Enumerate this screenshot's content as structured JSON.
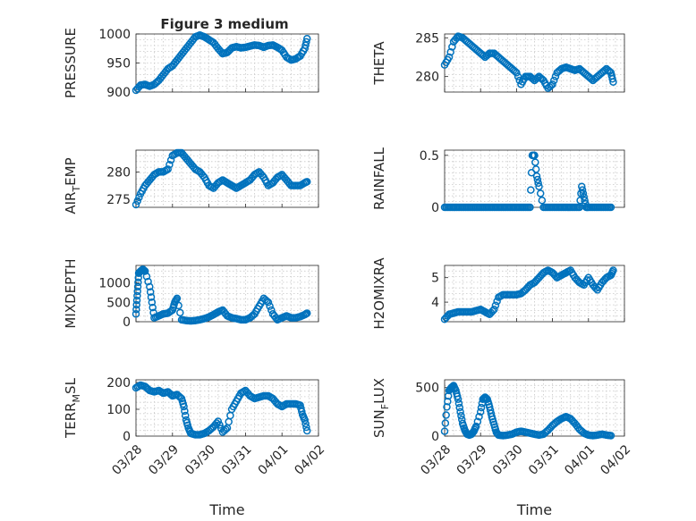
{
  "figure_title": "Figure 3 medium",
  "colors": {
    "marker": "#0072BD",
    "axes": "#262626",
    "grid": "#c8c8c8"
  },
  "chart_data": [
    {
      "type": "scatter",
      "id": "pressure",
      "ylabel": "PRESSURE",
      "xlabel": "",
      "ylim": [
        900,
        1000
      ],
      "yticks": [
        900,
        950,
        1000
      ],
      "xlim": [
        0,
        4
      ],
      "xtick_labels": [],
      "title": "Figure 3 medium",
      "series": [
        {
          "x": [
            0.0,
            0.1,
            0.2,
            0.3,
            0.4,
            0.5,
            0.6,
            0.7,
            0.8,
            0.9,
            1.0,
            1.1,
            1.2,
            1.3,
            1.4,
            1.5,
            1.6,
            1.7,
            1.8,
            1.9,
            2.0,
            2.1,
            2.2,
            2.3,
            2.4,
            2.5,
            2.6,
            2.7,
            2.8,
            2.9,
            3.0,
            3.1,
            3.2,
            3.3,
            3.4,
            3.5,
            3.6,
            3.7,
            3.75
          ],
          "y": [
            903,
            912,
            913,
            910,
            913,
            920,
            930,
            940,
            945,
            955,
            965,
            975,
            985,
            995,
            998,
            995,
            990,
            985,
            975,
            966,
            968,
            976,
            978,
            976,
            977,
            979,
            981,
            980,
            977,
            980,
            981,
            977,
            972,
            960,
            955,
            957,
            962,
            975,
            992
          ]
        }
      ]
    },
    {
      "type": "scatter",
      "id": "theta",
      "ylabel": "THETA",
      "xlabel": "",
      "ylim": [
        278,
        285.5
      ],
      "yticks": [
        280,
        285
      ],
      "xlim": [
        0,
        4
      ],
      "xtick_labels": [],
      "series": [
        {
          "x": [
            0.0,
            0.1,
            0.2,
            0.3,
            0.4,
            0.5,
            0.6,
            0.7,
            0.8,
            0.9,
            1.0,
            1.1,
            1.2,
            1.3,
            1.4,
            1.5,
            1.6,
            1.7,
            1.8,
            1.9,
            2.0,
            2.1,
            2.2,
            2.3,
            2.4,
            2.5,
            2.6,
            2.7,
            2.8,
            2.9,
            3.0,
            3.1,
            3.2,
            3.3,
            3.4,
            3.5,
            3.6,
            3.7,
            3.75
          ],
          "y": [
            281.5,
            282.5,
            284.5,
            285.2,
            285,
            284.5,
            284,
            283.5,
            283,
            282.5,
            283,
            283,
            282.5,
            282,
            281.5,
            281,
            280.5,
            279,
            280,
            280,
            279.5,
            280,
            279.5,
            278.5,
            279,
            280.5,
            281,
            281.2,
            281,
            280.8,
            281,
            280.5,
            280,
            279.5,
            280,
            280.5,
            281,
            280.5,
            279.3
          ]
        }
      ]
    },
    {
      "type": "scatter",
      "id": "air_temp",
      "ylabel": "AIR_TEMP",
      "xlabel": "",
      "ylim": [
        273.5,
        284
      ],
      "yticks": [
        275,
        280
      ],
      "xlim": [
        0,
        4
      ],
      "xtick_labels": [],
      "series": [
        {
          "x": [
            0.0,
            0.1,
            0.2,
            0.3,
            0.4,
            0.5,
            0.6,
            0.7,
            0.8,
            0.9,
            1.0,
            1.1,
            1.2,
            1.3,
            1.4,
            1.5,
            1.6,
            1.7,
            1.8,
            1.9,
            2.0,
            2.1,
            2.2,
            2.3,
            2.4,
            2.5,
            2.6,
            2.7,
            2.8,
            2.9,
            3.0,
            3.1,
            3.2,
            3.3,
            3.4,
            3.5,
            3.6,
            3.7,
            3.75
          ],
          "y": [
            274,
            276,
            277.5,
            278.5,
            279.5,
            280,
            280,
            280.5,
            283,
            283.5,
            283.5,
            282.5,
            281.5,
            280.5,
            280,
            279,
            277.5,
            277,
            278,
            278.5,
            278,
            277.5,
            277,
            277.5,
            278,
            278.5,
            279.5,
            280,
            279,
            277.5,
            278,
            279,
            279.5,
            278.5,
            277.5,
            277.5,
            277.5,
            278,
            278.2
          ]
        }
      ]
    },
    {
      "type": "scatter",
      "id": "rainfall",
      "ylabel": "RAINFALL",
      "xlabel": "",
      "ylim": [
        0,
        0.55
      ],
      "yticks": [
        0,
        0.5
      ],
      "xlim": [
        0,
        4
      ],
      "xtick_labels": [],
      "series": [
        {
          "x": [
            0.0,
            0.1,
            0.2,
            0.3,
            0.4,
            0.5,
            0.6,
            0.7,
            0.8,
            0.9,
            1.0,
            1.1,
            1.2,
            1.3,
            1.4,
            1.5,
            1.6,
            1.7,
            1.8,
            1.9,
            1.95,
            2.0,
            2.05,
            2.1,
            2.2,
            2.3,
            2.4,
            2.5,
            2.6,
            2.7,
            2.8,
            2.9,
            3.0,
            3.05,
            3.1,
            3.15,
            3.2,
            3.3,
            3.4,
            3.5,
            3.6,
            3.7
          ],
          "y": [
            0,
            0,
            0,
            0,
            0,
            0,
            0,
            0,
            0,
            0,
            0,
            0,
            0,
            0,
            0,
            0,
            0,
            0,
            0,
            0,
            0.5,
            0.5,
            0.3,
            0.2,
            0,
            0,
            0,
            0,
            0,
            0,
            0,
            0,
            0,
            0.2,
            0.1,
            0,
            0,
            0,
            0,
            0,
            0,
            0
          ]
        }
      ]
    },
    {
      "type": "scatter",
      "id": "mixdepth",
      "ylabel": "MIXDEPTH",
      "xlabel": "",
      "ylim": [
        0,
        1450
      ],
      "yticks": [
        0,
        500,
        1000
      ],
      "xlim": [
        0,
        4
      ],
      "xtick_labels": [],
      "series": [
        {
          "x": [
            0.0,
            0.02,
            0.04,
            0.06,
            0.1,
            0.15,
            0.2,
            0.3,
            0.35,
            0.4,
            0.5,
            0.6,
            0.7,
            0.8,
            0.85,
            0.9,
            1.0,
            1.1,
            1.2,
            1.3,
            1.4,
            1.5,
            1.6,
            1.7,
            1.8,
            1.9,
            2.0,
            2.1,
            2.2,
            2.3,
            2.4,
            2.5,
            2.6,
            2.7,
            2.8,
            2.9,
            3.0,
            3.1,
            3.2,
            3.3,
            3.4,
            3.5,
            3.6,
            3.7,
            3.75
          ],
          "y": [
            200,
            550,
            900,
            1250,
            1300,
            1350,
            1300,
            900,
            500,
            100,
            150,
            200,
            220,
            300,
            500,
            600,
            50,
            30,
            20,
            30,
            50,
            80,
            120,
            180,
            250,
            300,
            150,
            100,
            80,
            50,
            50,
            100,
            200,
            400,
            600,
            500,
            200,
            50,
            100,
            150,
            100,
            100,
            130,
            180,
            220
          ]
        }
      ]
    },
    {
      "type": "scatter",
      "id": "h2omixra",
      "ylabel": "H2OMIXRA",
      "xlabel": "",
      "ylim": [
        3.2,
        5.5
      ],
      "yticks": [
        4,
        5
      ],
      "xlim": [
        0,
        4
      ],
      "xtick_labels": [],
      "series": [
        {
          "x": [
            0.0,
            0.1,
            0.2,
            0.3,
            0.4,
            0.5,
            0.6,
            0.7,
            0.8,
            0.9,
            1.0,
            1.1,
            1.2,
            1.3,
            1.4,
            1.5,
            1.6,
            1.7,
            1.8,
            1.9,
            2.0,
            2.1,
            2.2,
            2.3,
            2.4,
            2.5,
            2.6,
            2.7,
            2.8,
            2.9,
            3.0,
            3.1,
            3.2,
            3.3,
            3.4,
            3.5,
            3.6,
            3.7,
            3.75
          ],
          "y": [
            3.3,
            3.5,
            3.55,
            3.6,
            3.6,
            3.6,
            3.6,
            3.65,
            3.7,
            3.6,
            3.5,
            3.7,
            4.2,
            4.3,
            4.3,
            4.3,
            4.3,
            4.35,
            4.5,
            4.7,
            4.8,
            5.0,
            5.2,
            5.3,
            5.2,
            5.0,
            5.1,
            5.2,
            5.3,
            5.0,
            4.8,
            4.7,
            5.0,
            4.7,
            4.5,
            4.8,
            5.0,
            5.1,
            5.3
          ]
        }
      ]
    },
    {
      "type": "scatter",
      "id": "terr_msl",
      "ylabel": "TERR_MSL",
      "xlabel": "Time",
      "ylim": [
        0,
        210
      ],
      "yticks": [
        0,
        100,
        200
      ],
      "xlim": [
        0,
        4
      ],
      "xtick_labels": [
        "03/28",
        "03/29",
        "03/30",
        "03/31",
        "04/01",
        "04/02"
      ],
      "series": [
        {
          "x": [
            0.0,
            0.1,
            0.2,
            0.3,
            0.4,
            0.5,
            0.6,
            0.7,
            0.8,
            0.9,
            1.0,
            1.05,
            1.1,
            1.15,
            1.2,
            1.3,
            1.4,
            1.5,
            1.6,
            1.7,
            1.8,
            1.9,
            2.0,
            2.1,
            2.2,
            2.3,
            2.4,
            2.5,
            2.6,
            2.7,
            2.8,
            2.9,
            3.0,
            3.1,
            3.2,
            3.3,
            3.4,
            3.5,
            3.6,
            3.65,
            3.7,
            3.75
          ],
          "y": [
            180,
            190,
            185,
            170,
            165,
            170,
            160,
            165,
            150,
            155,
            140,
            110,
            60,
            30,
            10,
            5,
            5,
            10,
            20,
            35,
            55,
            15,
            30,
            100,
            130,
            160,
            170,
            150,
            140,
            145,
            150,
            150,
            140,
            120,
            110,
            120,
            120,
            120,
            115,
            80,
            60,
            20
          ]
        }
      ]
    },
    {
      "type": "scatter",
      "id": "sun_flux",
      "ylabel": "SUN_FLUX",
      "xlabel": "Time",
      "ylim": [
        0,
        580
      ],
      "yticks": [
        0,
        500
      ],
      "xlim": [
        0,
        4
      ],
      "xtick_labels": [
        "03/28",
        "03/29",
        "03/30",
        "03/31",
        "04/01",
        "04/02"
      ],
      "series": [
        {
          "x": [
            0.0,
            0.05,
            0.1,
            0.15,
            0.2,
            0.25,
            0.3,
            0.35,
            0.4,
            0.45,
            0.5,
            0.55,
            0.6,
            0.65,
            0.7,
            0.8,
            0.85,
            0.9,
            0.95,
            1.0,
            1.05,
            1.1,
            1.15,
            1.2,
            1.3,
            1.4,
            1.5,
            1.6,
            1.7,
            1.8,
            1.9,
            2.0,
            2.1,
            2.2,
            2.3,
            2.4,
            2.5,
            2.6,
            2.7,
            2.8,
            2.9,
            3.0,
            3.1,
            3.2,
            3.3,
            3.4,
            3.5,
            3.6,
            3.7
          ],
          "y": [
            50,
            300,
            470,
            500,
            520,
            470,
            380,
            250,
            130,
            60,
            20,
            10,
            20,
            50,
            100,
            250,
            380,
            400,
            380,
            300,
            200,
            120,
            40,
            10,
            5,
            10,
            20,
            40,
            50,
            40,
            30,
            20,
            10,
            20,
            60,
            110,
            150,
            180,
            200,
            180,
            130,
            70,
            30,
            10,
            5,
            10,
            20,
            10,
            5
          ]
        }
      ]
    }
  ]
}
